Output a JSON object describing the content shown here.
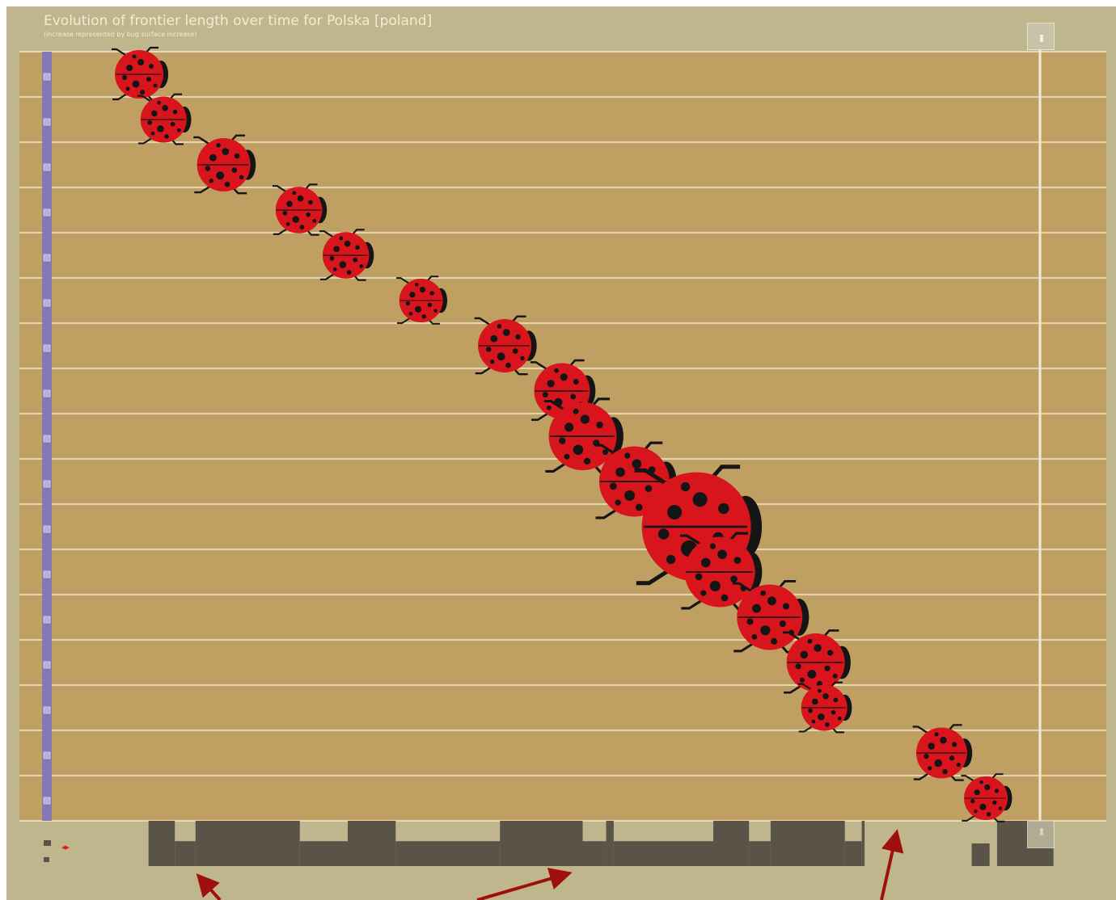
{
  "header": {
    "title": "Evolution of frontier length over time for Polska [poland]",
    "subtitle": "(increase represented by bug surface increase)"
  },
  "controls": {
    "scroll_top_icon": "scroll-top-icon",
    "scroll_bottom_icon": "scroll-bottom-icon",
    "nav_arrows_icon": "left-right-arrows-icon"
  },
  "colors": {
    "background": "#bfb68e",
    "plot": "#bf9f62",
    "gridline": "#f1e8cf",
    "axis_bar": "#8478b4",
    "bug_red": "#d8141c",
    "bug_black": "#151515",
    "histogram": "#5a5348",
    "annotation_arrow": "#a00f0f"
  },
  "chart_data": {
    "type": "scatter",
    "title": "Evolution of frontier length over time for Polska [poland]",
    "subtitle": "(increase represented by bug surface increase)",
    "xlabel": "",
    "ylabel": "",
    "rows": 17,
    "xlim": [
      0,
      100
    ],
    "grid": true,
    "points": [
      {
        "row": 0,
        "x": 6.2,
        "size": 1.0
      },
      {
        "row": 1,
        "x": 8.8,
        "size": 0.95
      },
      {
        "row": 2,
        "x": 15.2,
        "size": 1.1
      },
      {
        "row": 3,
        "x": 23.2,
        "size": 0.96
      },
      {
        "row": 4,
        "x": 28.2,
        "size": 0.96
      },
      {
        "row": 5,
        "x": 36.2,
        "size": 0.9
      },
      {
        "row": 6,
        "x": 45.1,
        "size": 1.1
      },
      {
        "row": 7,
        "x": 51.2,
        "size": 1.15
      },
      {
        "row": 8,
        "x": 53.4,
        "size": 1.4
      },
      {
        "row": 9,
        "x": 58.9,
        "size": 1.45
      },
      {
        "row": 10,
        "x": 65.5,
        "size": 2.25
      },
      {
        "row": 11,
        "x": 68.0,
        "size": 1.45
      },
      {
        "row": 12,
        "x": 73.3,
        "size": 1.35
      },
      {
        "row": 13,
        "x": 78.2,
        "size": 1.2
      },
      {
        "row": 14,
        "x": 79.1,
        "size": 0.95
      },
      {
        "row": 15,
        "x": 91.6,
        "size": 1.05
      },
      {
        "row": 16,
        "x": 96.3,
        "size": 0.9
      }
    ],
    "histogram": [
      {
        "x0": 7.2,
        "x1": 10.0,
        "level": 1
      },
      {
        "x0": 10.0,
        "x1": 12.2,
        "level": 0.55
      },
      {
        "x0": 12.2,
        "x1": 23.3,
        "level": 1
      },
      {
        "x0": 23.3,
        "x1": 28.4,
        "level": 0.55
      },
      {
        "x0": 28.4,
        "x1": 33.5,
        "level": 1
      },
      {
        "x0": 33.5,
        "x1": 44.6,
        "level": 0.55
      },
      {
        "x0": 44.6,
        "x1": 53.4,
        "level": 1
      },
      {
        "x0": 53.4,
        "x1": 55.9,
        "level": 0.55
      },
      {
        "x0": 55.9,
        "x1": 56.7,
        "level": 1
      },
      {
        "x0": 56.7,
        "x1": 67.3,
        "level": 0.55
      },
      {
        "x0": 67.3,
        "x1": 71.1,
        "level": 1
      },
      {
        "x0": 71.1,
        "x1": 73.4,
        "level": 0.55
      },
      {
        "x0": 73.4,
        "x1": 81.3,
        "level": 1
      },
      {
        "x0": 81.3,
        "x1": 83.1,
        "level": 0.55
      },
      {
        "x0": 83.1,
        "x1": 83.4,
        "level": 1
      },
      {
        "x0": 94.8,
        "x1": 96.7,
        "level": 0.5
      },
      {
        "x0": 97.5,
        "x1": 103.5,
        "level": 1
      }
    ]
  }
}
